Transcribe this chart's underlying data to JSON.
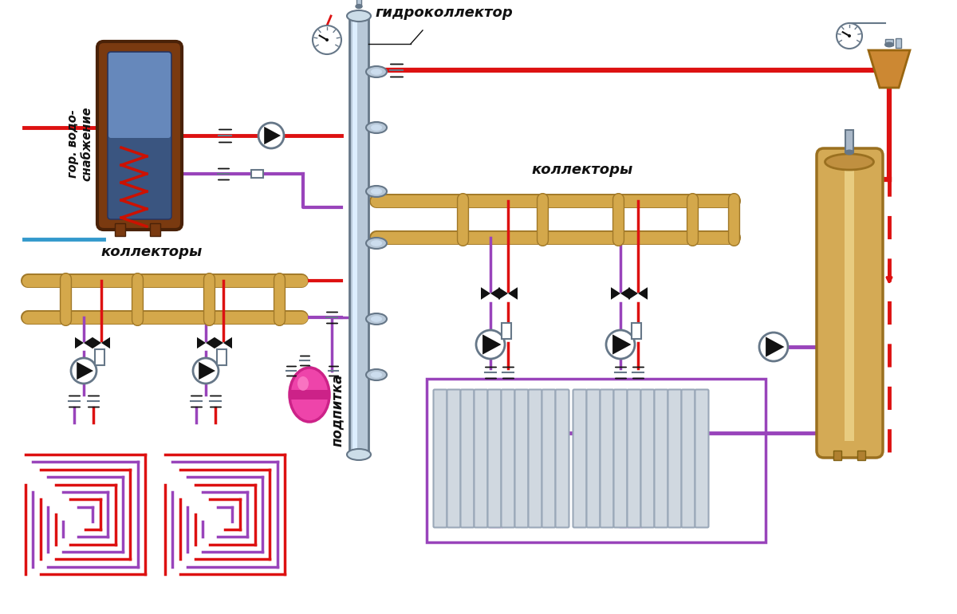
{
  "bg": "#ffffff",
  "red": "#dd1111",
  "purple": "#9944bb",
  "blue": "#3399cc",
  "gold": "#d4a84b",
  "dgold": "#a07828",
  "lgold": "#e8cc88",
  "gray": "#aabbcc",
  "dgray": "#667788",
  "lgray": "#ccddee",
  "pink": "#ee44aa",
  "black": "#111111",
  "white": "#ffffff",
  "brown": "#7a3a10",
  "steel": "#b8c8d8",
  "tan": "#c8a870",
  "label_hydro": "гидроколлектор",
  "label_kol_right": "коллекторы",
  "label_kol_left": "коллекторы",
  "label_gvs": "гор. водо-\nснабжение",
  "label_podpitka": "подпитка"
}
